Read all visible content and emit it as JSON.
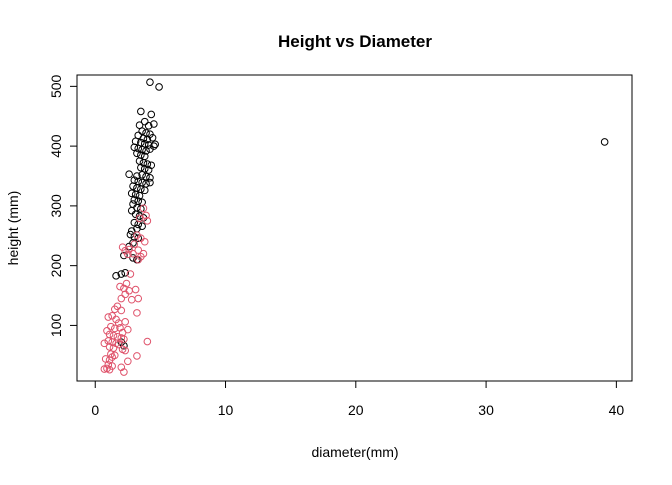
{
  "chart_data": {
    "type": "scatter",
    "title": "Height vs Diameter",
    "xlabel": "diameter(mm)",
    "ylabel": "height (mm)",
    "xlim": [
      -1.4,
      41.2
    ],
    "ylim": [
      7,
      519
    ],
    "xticks": [
      0,
      10,
      20,
      30,
      40
    ],
    "yticks": [
      100,
      200,
      300,
      400,
      500
    ],
    "grid": false,
    "legend": "none",
    "series": [
      {
        "color": "#000000",
        "marker": "open-circle",
        "points": [
          [
            4.2,
            507
          ],
          [
            4.9,
            499
          ],
          [
            39.1,
            407
          ],
          [
            3.5,
            458
          ],
          [
            4.3,
            453
          ],
          [
            3.4,
            435
          ],
          [
            3.8,
            441
          ],
          [
            4.1,
            434
          ],
          [
            4.5,
            437
          ],
          [
            3.6,
            425
          ],
          [
            3.9,
            422
          ],
          [
            4.2,
            420
          ],
          [
            3.3,
            418
          ],
          [
            3.7,
            413
          ],
          [
            4.0,
            411
          ],
          [
            4.4,
            414
          ],
          [
            3.1,
            408
          ],
          [
            3.5,
            406
          ],
          [
            3.8,
            404
          ],
          [
            4.1,
            402
          ],
          [
            4.6,
            403
          ],
          [
            3.0,
            398
          ],
          [
            3.3,
            396
          ],
          [
            3.6,
            394
          ],
          [
            3.9,
            392
          ],
          [
            4.2,
            395
          ],
          [
            4.5,
            400
          ],
          [
            3.2,
            388
          ],
          [
            3.5,
            385
          ],
          [
            3.8,
            383
          ],
          [
            3.4,
            375
          ],
          [
            3.7,
            372
          ],
          [
            4.0,
            370
          ],
          [
            4.3,
            368
          ],
          [
            3.5,
            364
          ],
          [
            3.8,
            362
          ],
          [
            4.1,
            360
          ],
          [
            2.6,
            353
          ],
          [
            3.2,
            350
          ],
          [
            3.6,
            352
          ],
          [
            3.9,
            349
          ],
          [
            4.2,
            347
          ],
          [
            3.0,
            343
          ],
          [
            3.3,
            341
          ],
          [
            3.6,
            339
          ],
          [
            3.9,
            337
          ],
          [
            4.2,
            339
          ],
          [
            2.9,
            333
          ],
          [
            3.2,
            330
          ],
          [
            3.5,
            328
          ],
          [
            3.8,
            326
          ],
          [
            2.8,
            321
          ],
          [
            3.1,
            319
          ],
          [
            3.4,
            317
          ],
          [
            3.0,
            310
          ],
          [
            3.3,
            308
          ],
          [
            3.6,
            306
          ],
          [
            2.9,
            303
          ],
          [
            3.2,
            297
          ],
          [
            3.5,
            295
          ],
          [
            2.8,
            292
          ],
          [
            3.1,
            286
          ],
          [
            3.4,
            283
          ],
          [
            3.7,
            280
          ],
          [
            3.0,
            272
          ],
          [
            3.3,
            269
          ],
          [
            3.6,
            266
          ],
          [
            3.2,
            262
          ],
          [
            2.8,
            258
          ],
          [
            2.7,
            252
          ],
          [
            3.0,
            248
          ],
          [
            3.3,
            246
          ],
          [
            2.9,
            238
          ],
          [
            2.6,
            232
          ],
          [
            2.2,
            217
          ],
          [
            2.9,
            213
          ],
          [
            3.2,
            210
          ],
          [
            1.6,
            183
          ],
          [
            2.0,
            186
          ],
          [
            2.3,
            188
          ],
          [
            2.0,
            72
          ],
          [
            2.2,
            66
          ]
        ]
      },
      {
        "color": "#DF536B",
        "marker": "open-circle",
        "points": [
          [
            3.7,
            296
          ],
          [
            3.9,
            284
          ],
          [
            3.4,
            279
          ],
          [
            4.0,
            275
          ],
          [
            3.2,
            251
          ],
          [
            3.5,
            246
          ],
          [
            3.8,
            240
          ],
          [
            3.0,
            236
          ],
          [
            2.6,
            227
          ],
          [
            3.3,
            226
          ],
          [
            2.9,
            220
          ],
          [
            3.5,
            215
          ],
          [
            3.7,
            220
          ],
          [
            3.3,
            210
          ],
          [
            2.1,
            231
          ],
          [
            2.3,
            225
          ],
          [
            2.5,
            219
          ],
          [
            2.7,
            186
          ],
          [
            2.4,
            170
          ],
          [
            2.2,
            162
          ],
          [
            1.9,
            165
          ],
          [
            2.6,
            158
          ],
          [
            2.3,
            152
          ],
          [
            2.0,
            145
          ],
          [
            3.1,
            160
          ],
          [
            3.3,
            145
          ],
          [
            2.8,
            143
          ],
          [
            1.7,
            132
          ],
          [
            2.0,
            125
          ],
          [
            3.2,
            121
          ],
          [
            1.5,
            127
          ],
          [
            1.3,
            116
          ],
          [
            1.0,
            114
          ],
          [
            1.6,
            110
          ],
          [
            2.3,
            106
          ],
          [
            1.8,
            104
          ],
          [
            1.2,
            98
          ],
          [
            1.5,
            95
          ],
          [
            1.9,
            96
          ],
          [
            2.5,
            93
          ],
          [
            0.9,
            91
          ],
          [
            2.1,
            88
          ],
          [
            1.1,
            85
          ],
          [
            1.4,
            83
          ],
          [
            1.7,
            81
          ],
          [
            2.0,
            79
          ],
          [
            2.2,
            77
          ],
          [
            1.0,
            74
          ],
          [
            1.3,
            72
          ],
          [
            1.6,
            70
          ],
          [
            1.8,
            68
          ],
          [
            0.7,
            70
          ],
          [
            4.0,
            73
          ],
          [
            1.1,
            64
          ],
          [
            1.4,
            62
          ],
          [
            2.1,
            60
          ],
          [
            2.3,
            58
          ],
          [
            1.2,
            52
          ],
          [
            1.5,
            50
          ],
          [
            3.2,
            49
          ],
          [
            1.3,
            47
          ],
          [
            0.8,
            44
          ],
          [
            1.1,
            42
          ],
          [
            2.5,
            40
          ],
          [
            1.0,
            34
          ],
          [
            1.3,
            32
          ],
          [
            0.9,
            28
          ],
          [
            2.0,
            30
          ],
          [
            1.1,
            26
          ],
          [
            0.7,
            27
          ],
          [
            2.2,
            22
          ]
        ]
      }
    ]
  }
}
